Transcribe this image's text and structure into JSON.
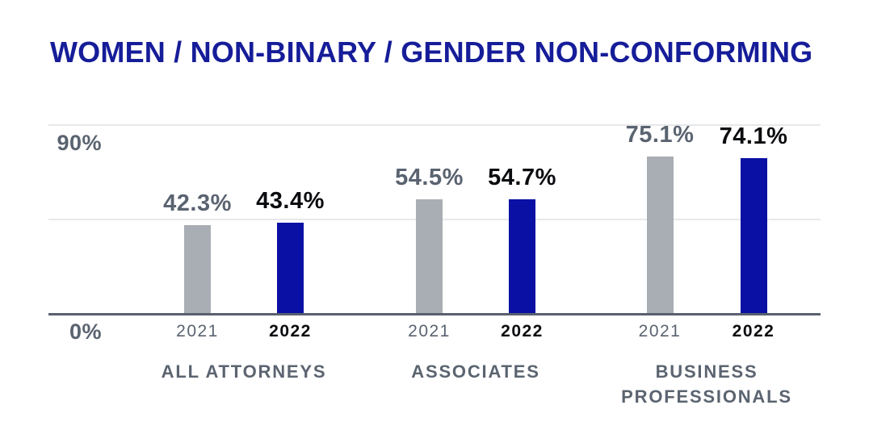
{
  "header": {
    "title": "WOMEN / NON-BINARY / GENDER NON-CONFORMING"
  },
  "colors": {
    "title_navy": "#161d99",
    "bar_2021_gray": "#a9aeb4",
    "bar_2022_blue": "#0a10a4",
    "slate_text": "#5a6370",
    "black_text": "#0b0c0f",
    "gridline": "#e7e8ea",
    "axis_line": "#59616d"
  },
  "chart_data": {
    "type": "bar",
    "title": "WOMEN / NON-BINARY / GENDER NON-CONFORMING",
    "categories": [
      "ALL ATTORNEYS",
      "ASSOCIATES",
      "BUSINESS PROFESSIONALS"
    ],
    "series": [
      {
        "name": "2021",
        "values": [
          42.3,
          54.5,
          75.1
        ],
        "value_labels": [
          "42.3%",
          "54.5%",
          "75.1%"
        ],
        "bar_color": "#a9aeb4",
        "label_color": "#5a6370",
        "year_tick_color": "#5a6370"
      },
      {
        "name": "2022",
        "values": [
          43.4,
          54.7,
          74.1
        ],
        "value_labels": [
          "43.4%",
          "54.7%",
          "74.1%"
        ],
        "bar_color": "#0a10a4",
        "label_color": "#0b0c0f",
        "year_tick_color": "#0b0c0f"
      }
    ],
    "xlabel": "",
    "ylabel": "",
    "ylim": [
      0,
      90
    ],
    "y_axis": {
      "ticks": [
        {
          "value": 90,
          "label": "90%"
        },
        {
          "value": 0,
          "label": "0%"
        }
      ],
      "gridline_values": [
        90,
        45
      ]
    },
    "grid": true,
    "legend_position": "none",
    "value_labels_shown": true
  }
}
